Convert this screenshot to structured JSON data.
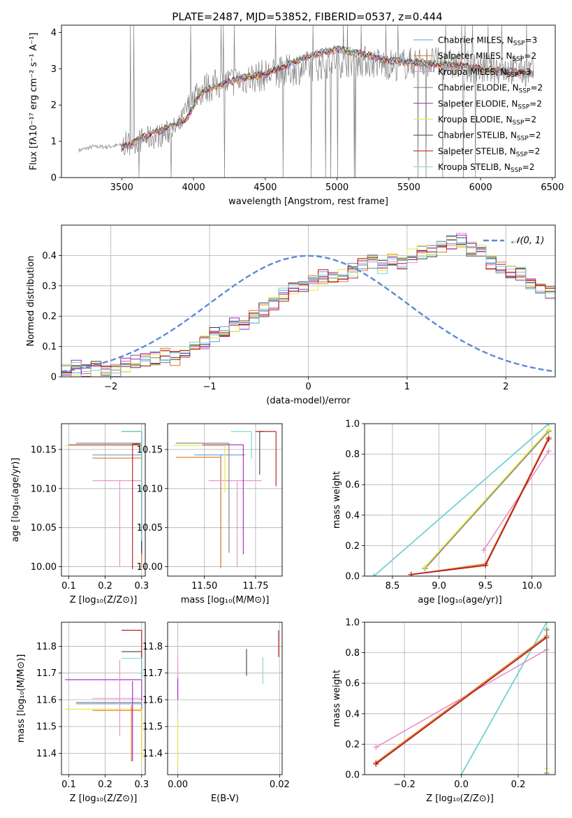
{
  "title": "PLATE=2487, MJD=53852, FIBERID=0537, z=0.444",
  "colors": {
    "grid": "#b0b0b0",
    "models": [
      "#6f96e0",
      "#e0781f",
      "#e88fc8",
      "#7f7f7f",
      "#a020c0",
      "#e8e83a",
      "#404040",
      "#b01515",
      "#6fd6d0"
    ],
    "spectrum": "#7f7f7f",
    "gaussian": "#5b8ad8"
  },
  "chart_data": [
    {
      "id": "spectrum",
      "type": "line",
      "xlabel": "wavelength [Angstrom, rest frame]",
      "ylabel": "Flux [fλ10⁻¹⁷ erg cm⁻² s⁻¹ A⁻¹]",
      "xlim": [
        3080,
        6520
      ],
      "ylim": [
        0,
        4.2
      ],
      "xticks": [
        3500,
        4000,
        4500,
        5000,
        5500,
        6000,
        6500
      ],
      "yticks": [
        0,
        1,
        2,
        3,
        4
      ],
      "legend": [
        "Chabrier MILES, N_SSP=3",
        "Salpeter MILES, N_SSP=2",
        "Kroupa MILES, N_SSP=3",
        "Chabrier ELODIE, N_SSP=2",
        "Salpeter ELODIE, N_SSP=2",
        "Kroupa ELODIE, N_SSP=2",
        "Chabrier STELIB, N_SSP=2",
        "Salpeter STELIB, N_SSP=2",
        "Kroupa STELIB, N_SSP=2"
      ],
      "legend_placement": "right",
      "spectrum_anchor_x": [
        3200,
        3250,
        3300,
        3400,
        3500,
        3600,
        3700,
        3800,
        3900,
        4000,
        4100,
        4200,
        4400,
        4600,
        4800,
        5000,
        5200,
        5400,
        5600,
        5800,
        6000,
        6200,
        6370
      ],
      "spectrum_anchor_y": [
        0.75,
        0.8,
        0.85,
        0.85,
        0.9,
        1.0,
        1.1,
        1.2,
        1.4,
        2.3,
        2.5,
        2.6,
        2.75,
        2.9,
        3.05,
        3.2,
        3.2,
        3.1,
        3.2,
        3.1,
        3.0,
        3.0,
        2.9
      ],
      "model_anchor_x": [
        3500,
        3650,
        3800,
        3950,
        4050,
        4300,
        4500,
        4800,
        5000,
        5400,
        5800,
        6100,
        6370
      ],
      "model_anchor_y": [
        0.8,
        1.1,
        1.35,
        1.6,
        2.35,
        2.7,
        2.85,
        3.35,
        3.55,
        3.2,
        3.1,
        2.95,
        2.85
      ],
      "emission_lines": [
        3727,
        4102,
        4340,
        4861,
        5007,
        6563
      ]
    },
    {
      "id": "residuals",
      "type": "bar",
      "xlabel": "(data-model)/error",
      "ylabel": "Normed distribution",
      "xlim": [
        -2.5,
        2.5
      ],
      "ylim": [
        0,
        0.5
      ],
      "xticks": [
        -2,
        -1,
        0,
        1,
        2
      ],
      "yticks": [
        0.0,
        0.1,
        0.2,
        0.3,
        0.4
      ],
      "legend": [
        "𝒩(0, 1)"
      ],
      "legend_placement": "top-right",
      "bin_width": 0.1,
      "bin_start": -2.5,
      "hist_values": [
        0.02,
        0.02,
        0.03,
        0.02,
        0.03,
        0.02,
        0.02,
        0.04,
        0.05,
        0.06,
        0.06,
        0.07,
        0.06,
        0.08,
        0.1,
        0.11,
        0.14,
        0.15,
        0.17,
        0.18,
        0.2,
        0.22,
        0.24,
        0.27,
        0.29,
        0.3,
        0.31,
        0.33,
        0.32,
        0.33,
        0.35,
        0.37,
        0.38,
        0.36,
        0.38,
        0.37,
        0.4,
        0.41,
        0.42,
        0.43,
        0.44,
        0.45,
        0.42,
        0.41,
        0.38,
        0.36,
        0.35,
        0.34,
        0.31,
        0.3,
        0.28,
        0.27,
        0.26,
        0.22,
        0.21,
        0.19,
        0.17,
        0.15,
        0.13,
        0.12,
        0.11,
        0.1,
        0.09,
        0.08,
        0.07,
        0.07,
        0.06,
        0.06,
        0.05,
        0.04,
        0.04,
        0.03,
        0.03,
        0.03
      ]
    },
    {
      "id": "age-vs-Z",
      "type": "scatter",
      "xlabel": "Z [log₁₀(Z/Z⊙)]",
      "ylabel": "age  [log₁₀(age/yr)]",
      "xlim": [
        0.08,
        0.31
      ],
      "ylim": [
        9.988,
        10.183
      ],
      "xticks": [
        0.1,
        0.2,
        0.3
      ],
      "xtick_labels": [
        "0.1",
        "0.2",
        "0.3"
      ],
      "yticks": [
        10.0,
        10.05,
        10.1,
        10.15
      ],
      "ytick_labels": [
        "10.00",
        "10.05",
        "10.10",
        "10.15"
      ],
      "series": [
        {
          "color": 0,
          "x": 0.3,
          "xerr": [
            0.135,
            0.0
          ],
          "y": 10.143,
          "yerr": [
            0.14,
            0.0
          ]
        },
        {
          "color": 1,
          "x": 0.3,
          "xerr": [
            0.135,
            0.0
          ],
          "y": 10.139,
          "yerr": [
            0.14,
            0.0
          ]
        },
        {
          "color": 2,
          "x": 0.24,
          "xerr": [
            0.075,
            0.06
          ],
          "y": 10.11,
          "yerr": [
            0.11,
            0.0
          ]
        },
        {
          "color": 3,
          "x": 0.3,
          "xerr": [
            0.18,
            0.0
          ],
          "y": 10.158,
          "yerr": [
            0.14,
            0.0
          ]
        },
        {
          "color": 4,
          "x": 0.3,
          "xerr": [
            0.2,
            0.0
          ],
          "y": 10.156,
          "yerr": [
            0.14,
            0.0
          ]
        },
        {
          "color": 5,
          "x": 0.3,
          "xerr": [
            0.21,
            0.0
          ],
          "y": 10.155,
          "yerr": [
            0.06,
            0.0
          ]
        },
        {
          "color": 6,
          "x": 0.3,
          "xerr": [
            0.055,
            0.0
          ],
          "y": 10.173,
          "yerr": [
            0.155,
            0.0
          ]
        },
        {
          "color": 7,
          "x": 0.275,
          "xerr": [
            0.0,
            0.02
          ],
          "y": 10.157,
          "yerr": [
            0.16,
            0.0
          ]
        },
        {
          "color": 8,
          "x": 0.3,
          "xerr": [
            0.055,
            0.0
          ],
          "y": 10.173,
          "yerr": [
            0.14,
            0.0
          ]
        }
      ]
    },
    {
      "id": "age-vs-mass",
      "type": "scatter",
      "xlabel": "mass [log₁₀(M/M⊙)]",
      "ylabel": "",
      "xlim": [
        11.32,
        11.88
      ],
      "ylim": [
        9.988,
        10.183
      ],
      "xticks": [
        11.5,
        11.75
      ],
      "xtick_labels": [
        "11.50",
        "11.75"
      ],
      "yticks": [
        10.0,
        10.05,
        10.1,
        10.15
      ],
      "ytick_labels": [
        "10.00",
        "10.05",
        "10.10",
        "10.15"
      ],
      "series": [
        {
          "color": 0,
          "x": 11.58,
          "xerr": [
            0.13,
            0.12
          ],
          "y": 10.143,
          "yerr": [
            0.142,
            0.0
          ]
        },
        {
          "color": 1,
          "x": 11.58,
          "xerr": [
            0.22,
            0.0
          ],
          "y": 10.14,
          "yerr": [
            0.142,
            0.0
          ]
        },
        {
          "color": 2,
          "x": 11.66,
          "xerr": [
            0.14,
            0.12
          ],
          "y": 10.11,
          "yerr": [
            0.11,
            0.0
          ]
        },
        {
          "color": 3,
          "x": 11.62,
          "xerr": [
            0.26,
            0.0
          ],
          "y": 10.158,
          "yerr": [
            0.14,
            0.0
          ]
        },
        {
          "color": 4,
          "x": 11.69,
          "xerr": [
            0.2,
            0.0
          ],
          "y": 10.156,
          "yerr": [
            0.14,
            0.0
          ]
        },
        {
          "color": 5,
          "x": 11.6,
          "xerr": [
            0.25,
            0.0
          ],
          "y": 10.155,
          "yerr": [
            0.06,
            0.0
          ]
        },
        {
          "color": 6,
          "x": 11.77,
          "xerr": [
            0.0,
            0.02
          ],
          "y": 10.173,
          "yerr": [
            0.055,
            0.0
          ]
        },
        {
          "color": 7,
          "x": 11.85,
          "xerr": [
            0.1,
            0.0
          ],
          "y": 10.173,
          "yerr": [
            0.07,
            0.0
          ]
        },
        {
          "color": 8,
          "x": 11.73,
          "xerr": [
            0.1,
            0.0
          ],
          "y": 10.173,
          "yerr": [
            0.035,
            0.0
          ]
        }
      ]
    },
    {
      "id": "weight-vs-age",
      "type": "line",
      "xlabel": "age  [log₁₀(age/yr)]",
      "ylabel": "mass weight",
      "xlim": [
        8.2,
        10.25
      ],
      "ylim": [
        0,
        1.0
      ],
      "xticks": [
        8.5,
        9.0,
        9.5,
        10.0
      ],
      "xtick_labels": [
        "8.5",
        "9.0",
        "9.5",
        "10.0"
      ],
      "yticks": [
        0.0,
        0.2,
        0.4,
        0.6,
        0.8,
        1.0
      ],
      "ytick_labels": [
        "0.0",
        "0.2",
        "0.4",
        "0.6",
        "0.8",
        "1.0"
      ],
      "series": [
        {
          "color": 0,
          "x": [
            8.3,
            10.18
          ],
          "y": [
            0.0,
            1.0
          ]
        },
        {
          "color": 8,
          "x": [
            8.3,
            10.18
          ],
          "y": [
            0.0,
            1.0
          ]
        },
        {
          "color": 3,
          "x": [
            8.85,
            10.18
          ],
          "y": [
            0.05,
            0.95
          ]
        },
        {
          "color": 5,
          "x": [
            8.85,
            10.18
          ],
          "y": [
            0.06,
            0.96
          ]
        },
        {
          "color": 2,
          "x": [
            9.48,
            10.18
          ],
          "y": [
            0.17,
            0.82
          ]
        },
        {
          "color": 1,
          "x": [
            8.7,
            9.5,
            10.18
          ],
          "y": [
            0.01,
            0.08,
            0.91
          ]
        },
        {
          "color": 7,
          "x": [
            8.7,
            9.5,
            10.18
          ],
          "y": [
            0.01,
            0.07,
            0.9
          ]
        }
      ]
    },
    {
      "id": "mass-vs-Z",
      "type": "scatter",
      "xlabel": "Z [log₁₀(Z/Z⊙)]",
      "ylabel": "mass [log₁₀(M/M⊙)]",
      "xlim": [
        0.08,
        0.31
      ],
      "ylim": [
        11.32,
        11.89
      ],
      "xticks": [
        0.1,
        0.2,
        0.3
      ],
      "xtick_labels": [
        "0.1",
        "0.2",
        "0.3"
      ],
      "yticks": [
        11.4,
        11.5,
        11.6,
        11.7,
        11.8
      ],
      "ytick_labels": [
        "11.4",
        "11.5",
        "11.6",
        "11.7",
        "11.8"
      ],
      "series": [
        {
          "color": 0,
          "x": 0.3,
          "xerr": [
            0.18,
            0.0
          ],
          "y": 11.585,
          "yerr": [
            0.1,
            0.0
          ]
        },
        {
          "color": 1,
          "x": 0.3,
          "xerr": [
            0.135,
            0.0
          ],
          "y": 11.56,
          "yerr": [
            0.18,
            0.0
          ]
        },
        {
          "color": 2,
          "x": 0.3,
          "xerr": [
            0.135,
            0.0
          ],
          "y": 11.605,
          "yerr": [
            0.0,
            0.0
          ]
        },
        {
          "color": 3,
          "x": 0.3,
          "xerr": [
            0.18,
            0.0
          ],
          "y": 11.59,
          "yerr": [
            0.06,
            0.0
          ]
        },
        {
          "color": 4,
          "x": 0.3,
          "xerr": [
            0.21,
            0.0
          ],
          "y": 11.675,
          "yerr": [
            0.08,
            0.0
          ]
        },
        {
          "color": 5,
          "x": 0.3,
          "xerr": [
            0.21,
            0.0
          ],
          "y": 11.565,
          "yerr": [
            0.2,
            0.0
          ]
        },
        {
          "color": 6,
          "x": 0.3,
          "xerr": [
            0.055,
            0.0
          ],
          "y": 11.78,
          "yerr": [
            0.1,
            0.0
          ]
        },
        {
          "color": 7,
          "x": 0.3,
          "xerr": [
            0.055,
            0.0
          ],
          "y": 11.86,
          "yerr": [
            0.1,
            0.0
          ]
        },
        {
          "color": 8,
          "x": 0.3,
          "xerr": [
            0.055,
            0.0
          ],
          "y": 11.755,
          "yerr": [
            0.08,
            0.0
          ]
        },
        {
          "color": 2,
          "x": 0.24,
          "xerr": [
            0.0,
            0.0
          ],
          "y": 11.55,
          "yerr": [
            0.085,
            0.2
          ]
        },
        {
          "color": 4,
          "x": 0.275,
          "xerr": [
            0.0,
            0.0
          ],
          "y": 11.5,
          "yerr": [
            0.13,
            0.17
          ]
        },
        {
          "color": 1,
          "x": 0.272,
          "xerr": [
            0.0,
            0.0
          ],
          "y": 11.55,
          "yerr": [
            0.18,
            0.03
          ]
        }
      ]
    },
    {
      "id": "mass-vs-EBV",
      "type": "scatter",
      "xlabel": "E(B-V)",
      "ylabel": "",
      "xlim": [
        -0.002,
        0.0205
      ],
      "ylim": [
        11.32,
        11.89
      ],
      "xticks": [
        0.0,
        0.02
      ],
      "xtick_labels": [
        "0.00",
        "0.02"
      ],
      "yticks": [
        11.4,
        11.5,
        11.6,
        11.7,
        11.8
      ],
      "ytick_labels": [
        "11.4",
        "11.5",
        "11.6",
        "11.7",
        "11.8"
      ],
      "series": [
        {
          "color": 2,
          "x": 0.0,
          "xerr": [
            0,
            0
          ],
          "y": 11.7,
          "yerr": [
            0.08,
            0.06
          ]
        },
        {
          "color": 4,
          "x": 0.0,
          "xerr": [
            0,
            0
          ],
          "y": 11.65,
          "yerr": [
            0.05,
            0.03
          ]
        },
        {
          "color": 5,
          "x": 0.0,
          "xerr": [
            0,
            0
          ],
          "y": 11.45,
          "yerr": [
            0.1,
            0.08
          ]
        },
        {
          "color": 6,
          "x": 0.0135,
          "xerr": [
            0,
            0
          ],
          "y": 11.74,
          "yerr": [
            0.05,
            0.05
          ]
        },
        {
          "color": 8,
          "x": 0.0167,
          "xerr": [
            0,
            0
          ],
          "y": 11.71,
          "yerr": [
            0.05,
            0.05
          ]
        },
        {
          "color": 7,
          "x": 0.0198,
          "xerr": [
            0,
            0
          ],
          "y": 11.81,
          "yerr": [
            0.05,
            0.05
          ]
        }
      ]
    },
    {
      "id": "weight-vs-Z",
      "type": "line",
      "xlabel": "Z [log₁₀(Z/Z⊙)]",
      "ylabel": "mass weight",
      "xlim": [
        -0.34,
        0.33
      ],
      "ylim": [
        0,
        1.0
      ],
      "xticks": [
        -0.2,
        0.0,
        0.2
      ],
      "xtick_labels": [
        "−0.2",
        "0.0",
        "0.2"
      ],
      "yticks": [
        0.0,
        0.2,
        0.4,
        0.6,
        0.8,
        1.0
      ],
      "ytick_labels": [
        "0.0",
        "0.2",
        "0.4",
        "0.6",
        "0.8",
        "1.0"
      ],
      "series": [
        {
          "color": 0,
          "x": [
            0.0,
            0.3
          ],
          "y": [
            0.0,
            1.0
          ]
        },
        {
          "color": 8,
          "x": [
            0.0,
            0.3
          ],
          "y": [
            0.0,
            1.0
          ]
        },
        {
          "color": 2,
          "x": [
            -0.3,
            0.3
          ],
          "y": [
            0.18,
            0.82
          ]
        },
        {
          "color": 1,
          "x": [
            -0.3,
            0.3
          ],
          "y": [
            0.08,
            0.91
          ]
        },
        {
          "color": 7,
          "x": [
            -0.3,
            0.3
          ],
          "y": [
            0.07,
            0.9
          ]
        },
        {
          "color": 5,
          "x": [
            0.3,
            0.3
          ],
          "y": [
            0.04,
            0.96
          ]
        },
        {
          "color": 3,
          "x": [
            0.3,
            0.3
          ],
          "y": [
            0.01,
            0.95
          ]
        }
      ]
    }
  ]
}
